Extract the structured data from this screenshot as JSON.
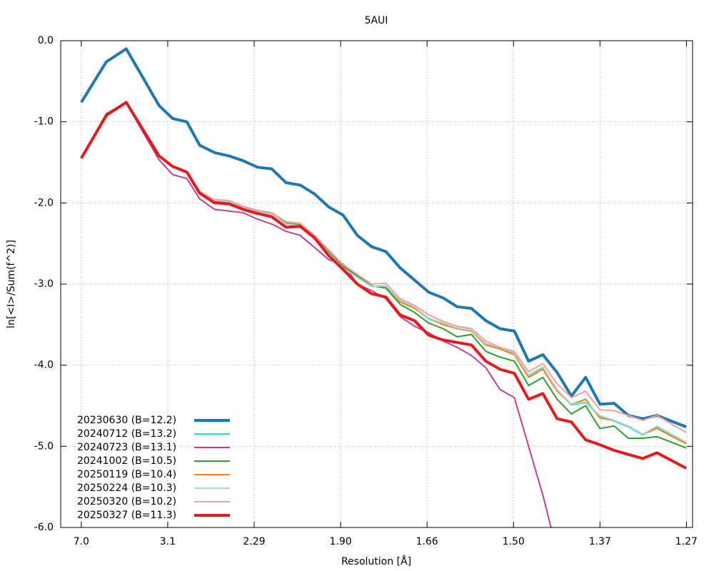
{
  "chart_data": {
    "type": "line",
    "title": "5AUI",
    "xlabel": "Resolution [Å]",
    "ylabel": "ln[<I>/Sum(f^2)]",
    "xlim": [
      0,
      0.6264
    ],
    "ylim": [
      -6,
      0
    ],
    "grid": true,
    "legend": "lower left",
    "xticks": [
      {
        "value": 0.0204,
        "label": "7.0"
      },
      {
        "value": 0.1061,
        "label": "3.1"
      },
      {
        "value": 0.1918,
        "label": "2.29"
      },
      {
        "value": 0.2775,
        "label": "1.90"
      },
      {
        "value": 0.3632,
        "label": "1.66"
      },
      {
        "value": 0.4489,
        "label": "1.50"
      },
      {
        "value": 0.5346,
        "label": "1.37"
      },
      {
        "value": 0.6203,
        "label": "1.27"
      }
    ],
    "yticks": [
      {
        "value": 0,
        "label": "0.0"
      },
      {
        "value": -1,
        "label": "-1.0"
      },
      {
        "value": -2,
        "label": "-2.0"
      },
      {
        "value": -3,
        "label": "-3.0"
      },
      {
        "value": -4,
        "label": "-4.0"
      },
      {
        "value": -5,
        "label": "-5.0"
      },
      {
        "value": -6,
        "label": "-6.0"
      }
    ],
    "x": [
      0.0204,
      0.0452,
      0.065,
      0.0975,
      0.111,
      0.1251,
      0.1378,
      0.1527,
      0.1668,
      0.1809,
      0.1951,
      0.2092,
      0.2234,
      0.2375,
      0.2517,
      0.2658,
      0.2799,
      0.2941,
      0.3082,
      0.3224,
      0.3365,
      0.3507,
      0.3648,
      0.379,
      0.3931,
      0.4072,
      0.4214,
      0.4355,
      0.4497,
      0.4638,
      0.478,
      0.4921,
      0.5063,
      0.5204,
      0.5345,
      0.5487,
      0.5628,
      0.577,
      0.5911,
      0.6201
    ],
    "series": [
      {
        "name": "20230630 (B=12.2)",
        "color": "#1f77b4",
        "width": 4,
        "values": [
          -0.76,
          -0.26,
          -0.1,
          -0.8,
          -0.96,
          -1.0,
          -1.29,
          -1.38,
          -1.42,
          -1.48,
          -1.56,
          -1.58,
          -1.75,
          -1.78,
          -1.89,
          -2.05,
          -2.15,
          -2.4,
          -2.54,
          -2.6,
          -2.8,
          -2.95,
          -3.1,
          -3.17,
          -3.28,
          -3.3,
          -3.45,
          -3.55,
          -3.58,
          -3.95,
          -3.87,
          -4.09,
          -4.38,
          -4.15,
          -4.48,
          -4.47,
          -4.62,
          -4.66,
          -4.62,
          -4.76
        ]
      },
      {
        "name": "20240712 (B=13.2)",
        "color": "#1fe5d8",
        "width": 2,
        "values": [
          -1.45,
          -0.91,
          -0.76,
          -1.42,
          -1.55,
          -1.63,
          -1.86,
          -1.97,
          -1.98,
          -2.06,
          -2.11,
          -2.14,
          -2.26,
          -2.28,
          -2.43,
          -2.62,
          -2.8,
          -2.92,
          -3.03,
          -3.03,
          -3.21,
          -3.29,
          -3.43,
          -3.49,
          -3.55,
          -3.58,
          -3.74,
          -3.79,
          -3.86,
          -4.13,
          -4.03,
          -4.31,
          -4.49,
          -4.46,
          -4.63,
          -4.69,
          -4.76,
          -4.86,
          -4.76,
          -4.96
        ]
      },
      {
        "name": "20240723 (B=13.1)",
        "color": "#c53d9b",
        "width": 2,
        "values": [
          -1.45,
          -0.9,
          -0.77,
          -1.47,
          -1.65,
          -1.7,
          -1.95,
          -2.08,
          -2.1,
          -2.12,
          -2.2,
          -2.26,
          -2.35,
          -2.4,
          -2.55,
          -2.7,
          -2.75,
          -3.0,
          -3.08,
          -3.18,
          -3.4,
          -3.52,
          -3.6,
          -3.7,
          -3.78,
          -3.88,
          -4.03,
          -4.3,
          -4.4,
          -5.0,
          -5.6,
          -6.3,
          null,
          null,
          null,
          null,
          null,
          null,
          null,
          null
        ]
      },
      {
        "name": "20241002 (B=10.5)",
        "color": "#2ca02c",
        "width": 2,
        "values": [
          -1.45,
          -0.9,
          -0.76,
          -1.42,
          -1.55,
          -1.63,
          -1.87,
          -1.98,
          -1.98,
          -2.05,
          -2.1,
          -2.12,
          -2.25,
          -2.27,
          -2.42,
          -2.6,
          -2.78,
          -2.9,
          -3.02,
          -3.05,
          -3.25,
          -3.35,
          -3.48,
          -3.55,
          -3.65,
          -3.62,
          -3.83,
          -3.9,
          -3.95,
          -4.25,
          -4.15,
          -4.42,
          -4.6,
          -4.5,
          -4.78,
          -4.75,
          -4.9,
          -4.9,
          -4.88,
          -5.02
        ]
      },
      {
        "name": "20250119 (B=10.4)",
        "color": "#ff7f0e",
        "width": 2,
        "values": [
          -1.45,
          -0.91,
          -0.76,
          -1.42,
          -1.55,
          -1.63,
          -1.86,
          -1.97,
          -1.98,
          -2.06,
          -2.11,
          -2.14,
          -2.26,
          -2.28,
          -2.43,
          -2.62,
          -2.8,
          -2.92,
          -3.03,
          -3.02,
          -3.22,
          -3.3,
          -3.42,
          -3.5,
          -3.55,
          -3.58,
          -3.75,
          -3.8,
          -3.87,
          -4.15,
          -4.05,
          -4.32,
          -4.48,
          -4.42,
          -4.65,
          -4.68,
          -4.75,
          -4.85,
          -4.78,
          -4.97
        ]
      },
      {
        "name": "20250224 (B=10.3)",
        "color": "#a8d8dc",
        "width": 2,
        "values": [
          -1.45,
          -0.91,
          -0.76,
          -1.42,
          -1.55,
          -1.63,
          -1.86,
          -1.97,
          -1.98,
          -2.06,
          -2.11,
          -2.14,
          -2.26,
          -2.28,
          -2.43,
          -2.62,
          -2.8,
          -2.92,
          -3.03,
          -3.02,
          -3.2,
          -3.28,
          -3.42,
          -3.48,
          -3.54,
          -3.57,
          -3.73,
          -3.78,
          -3.85,
          -4.12,
          -4.02,
          -4.3,
          -4.48,
          -4.45,
          -4.62,
          -4.68,
          -4.75,
          -4.85,
          -4.75,
          -4.95
        ]
      },
      {
        "name": "20250320 (B=10.2)",
        "color": "#f5a0a0",
        "width": 2,
        "values": [
          -1.45,
          -0.91,
          -0.76,
          -1.42,
          -1.55,
          -1.62,
          -1.86,
          -1.96,
          -1.97,
          -2.04,
          -2.09,
          -2.12,
          -2.23,
          -2.25,
          -2.4,
          -2.58,
          -2.76,
          -2.88,
          -3.0,
          -2.99,
          -3.18,
          -3.26,
          -3.38,
          -3.46,
          -3.52,
          -3.55,
          -3.7,
          -3.78,
          -3.83,
          -4.08,
          -3.98,
          -4.23,
          -4.4,
          -4.32,
          -4.55,
          -4.56,
          -4.62,
          -4.68,
          -4.62,
          -4.83
        ]
      },
      {
        "name": "20250327 (B=11.3)",
        "color": "#e41a1c",
        "width": 4,
        "values": [
          -1.45,
          -0.92,
          -0.76,
          -1.42,
          -1.55,
          -1.62,
          -1.88,
          -2.0,
          -2.01,
          -2.08,
          -2.13,
          -2.17,
          -2.3,
          -2.29,
          -2.43,
          -2.65,
          -2.82,
          -3.0,
          -3.12,
          -3.16,
          -3.38,
          -3.45,
          -3.63,
          -3.69,
          -3.72,
          -3.75,
          -3.95,
          -4.05,
          -4.1,
          -4.42,
          -4.35,
          -4.66,
          -4.7,
          -4.92,
          -4.98,
          -5.05,
          -5.1,
          -5.15,
          -5.08,
          -5.27
        ]
      }
    ]
  }
}
